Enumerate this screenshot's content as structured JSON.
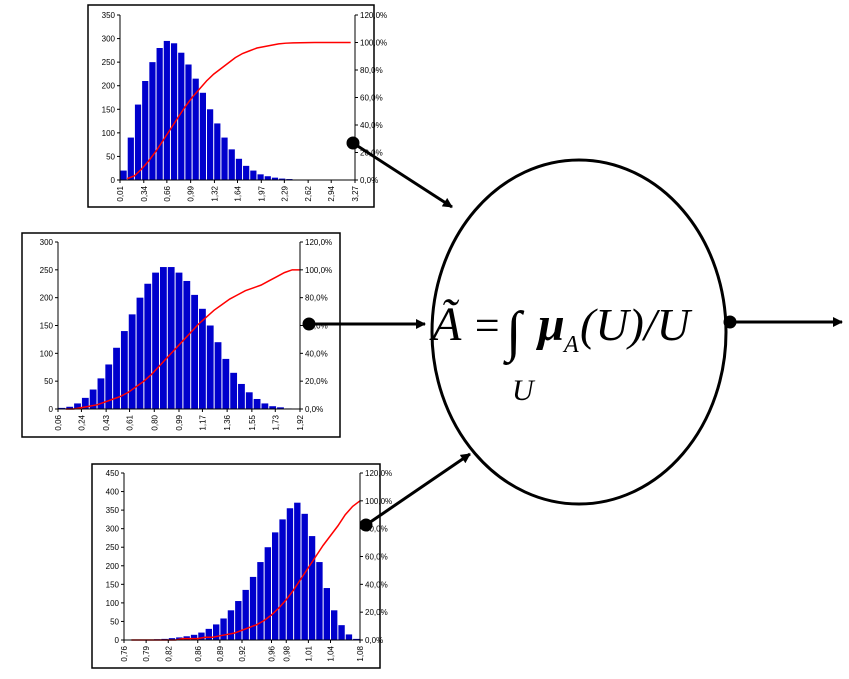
{
  "chart_data": [
    {
      "type": "histogram",
      "color": "#0000cc",
      "bins": [
        0.01,
        0.11,
        0.21,
        0.31,
        0.41,
        0.51,
        0.61,
        0.71,
        0.81,
        0.91,
        1.01,
        1.11,
        1.21,
        1.31,
        1.41,
        1.51,
        1.61,
        1.71,
        1.81,
        1.91,
        2.01,
        2.11,
        2.21,
        2.31,
        2.41,
        2.51,
        2.61,
        2.71,
        2.81,
        2.91,
        3.01,
        3.11,
        3.21
      ],
      "values": [
        20,
        90,
        160,
        210,
        250,
        280,
        295,
        290,
        270,
        245,
        215,
        185,
        150,
        120,
        90,
        65,
        45,
        30,
        20,
        12,
        8,
        5,
        3,
        2,
        1,
        1,
        0,
        0,
        0,
        0,
        0,
        0
      ],
      "series": [
        {
          "color": "#ff0000",
          "axis": "y2",
          "values": [
            1,
            3,
            8,
            14,
            21,
            29,
            37,
            45,
            53,
            60,
            66,
            72,
            77,
            81,
            85,
            89,
            92,
            94,
            96,
            97,
            98,
            99,
            99.5,
            99.7,
            99.8,
            99.9,
            100,
            100,
            100,
            100,
            100,
            100
          ]
        }
      ],
      "xlim": [
        0.01,
        3.27
      ],
      "xticks": [
        {
          "value": 0.01,
          "label": "0,01"
        },
        {
          "value": 0.34,
          "label": "0,34"
        },
        {
          "value": 0.66,
          "label": "0,66"
        },
        {
          "value": 0.99,
          "label": "0,99"
        },
        {
          "value": 1.32,
          "label": "1,32"
        },
        {
          "value": 1.64,
          "label": "1,64"
        },
        {
          "value": 1.97,
          "label": "1,97"
        },
        {
          "value": 2.29,
          "label": "2,29"
        },
        {
          "value": 2.62,
          "label": "2,62"
        },
        {
          "value": 2.94,
          "label": "2,94"
        },
        {
          "value": 3.27,
          "label": "3,27"
        }
      ],
      "ylim": [
        0,
        350
      ],
      "yticks": [
        0,
        50,
        100,
        150,
        200,
        250,
        300,
        350
      ],
      "y2lim": [
        0,
        120
      ],
      "y2ticks": [
        {
          "value": 0,
          "label": "0,0%"
        },
        {
          "value": 20,
          "label": "20,0%"
        },
        {
          "value": 40,
          "label": "40,0%"
        },
        {
          "value": 60,
          "label": "60,0%"
        },
        {
          "value": 80,
          "label": "80,0%"
        },
        {
          "value": 100,
          "label": "100,0%"
        },
        {
          "value": 120,
          "label": "120,0%"
        }
      ]
    },
    {
      "type": "histogram",
      "color": "#0000cc",
      "bins": [
        0.06,
        0.12,
        0.18,
        0.24,
        0.3,
        0.36,
        0.42,
        0.48,
        0.54,
        0.6,
        0.66,
        0.72,
        0.78,
        0.84,
        0.9,
        0.96,
        1.02,
        1.08,
        1.14,
        1.2,
        1.26,
        1.32,
        1.38,
        1.44,
        1.5,
        1.56,
        1.62,
        1.68,
        1.74,
        1.8,
        1.86,
        1.92
      ],
      "values": [
        2,
        4,
        10,
        20,
        35,
        55,
        80,
        110,
        140,
        170,
        200,
        225,
        245,
        255,
        255,
        245,
        230,
        205,
        180,
        150,
        120,
        90,
        65,
        45,
        30,
        18,
        10,
        5,
        3,
        1,
        0
      ],
      "series": [
        {
          "color": "#ff0000",
          "axis": "y2",
          "values": [
            0,
            0,
            1,
            2,
            3,
            5,
            7,
            9,
            12,
            16,
            20,
            25,
            31,
            37,
            43,
            49,
            55,
            61,
            66,
            71,
            75,
            79,
            82,
            85,
            87,
            89,
            92,
            95,
            98,
            100,
            100
          ]
        }
      ],
      "xlim": [
        0.06,
        1.92
      ],
      "xticks": [
        {
          "value": 0.06,
          "label": "0,06"
        },
        {
          "value": 0.24,
          "label": "0,24"
        },
        {
          "value": 0.43,
          "label": "0,43"
        },
        {
          "value": 0.61,
          "label": "0,61"
        },
        {
          "value": 0.8,
          "label": "0,80"
        },
        {
          "value": 0.99,
          "label": "0,99"
        },
        {
          "value": 1.17,
          "label": "1,17"
        },
        {
          "value": 1.36,
          "label": "1,36"
        },
        {
          "value": 1.55,
          "label": "1,55"
        },
        {
          "value": 1.73,
          "label": "1,73"
        },
        {
          "value": 1.92,
          "label": "1,92"
        }
      ],
      "ylim": [
        0,
        300
      ],
      "yticks": [
        0,
        50,
        100,
        150,
        200,
        250,
        300
      ],
      "y2lim": [
        0,
        120
      ],
      "y2ticks": [
        {
          "value": 0,
          "label": "0,0%"
        },
        {
          "value": 20,
          "label": "20,0%"
        },
        {
          "value": 40,
          "label": "40,0%"
        },
        {
          "value": 60,
          "label": "60,0%"
        },
        {
          "value": 80,
          "label": "80,0%"
        },
        {
          "value": 100,
          "label": "100,0%"
        },
        {
          "value": 120,
          "label": "120,0%"
        }
      ]
    },
    {
      "type": "histogram",
      "color": "#0000cc",
      "bins": [
        0.76,
        0.77,
        0.78,
        0.79,
        0.8,
        0.81,
        0.82,
        0.83,
        0.84,
        0.85,
        0.86,
        0.87,
        0.88,
        0.89,
        0.9,
        0.91,
        0.92,
        0.93,
        0.94,
        0.95,
        0.96,
        0.97,
        0.98,
        0.99,
        1.0,
        1.01,
        1.02,
        1.03,
        1.04,
        1.05,
        1.06,
        1.07,
        1.08
      ],
      "values": [
        0,
        0,
        0,
        1,
        2,
        3,
        5,
        7,
        10,
        14,
        20,
        30,
        42,
        58,
        80,
        105,
        135,
        170,
        210,
        250,
        290,
        325,
        355,
        370,
        340,
        280,
        210,
        140,
        80,
        40,
        15,
        3
      ],
      "series": [
        {
          "color": "#ff0000",
          "axis": "y2",
          "values": [
            0,
            0,
            0,
            0,
            0,
            0,
            0,
            1,
            1,
            1,
            2,
            2,
            3,
            4,
            5,
            7,
            9,
            11,
            14,
            18,
            23,
            29,
            36,
            44,
            52,
            60,
            68,
            75,
            82,
            90,
            96,
            100
          ]
        }
      ],
      "xlim": [
        0.76,
        1.08
      ],
      "xticks": [
        {
          "value": 0.76,
          "label": "0,76"
        },
        {
          "value": 0.79,
          "label": "0,79"
        },
        {
          "value": 0.82,
          "label": "0,82"
        },
        {
          "value": 0.86,
          "label": "0,86"
        },
        {
          "value": 0.89,
          "label": "0,89"
        },
        {
          "value": 0.92,
          "label": "0,92"
        },
        {
          "value": 0.96,
          "label": "0,96"
        },
        {
          "value": 0.98,
          "label": "0,98"
        },
        {
          "value": 1.01,
          "label": "1,01"
        },
        {
          "value": 1.04,
          "label": "1,04"
        },
        {
          "value": 1.08,
          "label": "1,08"
        }
      ],
      "ylim": [
        0,
        450
      ],
      "yticks": [
        0,
        50,
        100,
        150,
        200,
        250,
        300,
        350,
        400,
        450
      ],
      "y2lim": [
        0,
        120
      ],
      "y2ticks": [
        {
          "value": 0,
          "label": "0,0%"
        },
        {
          "value": 20,
          "label": "20,0%"
        },
        {
          "value": 40,
          "label": "40,0%"
        },
        {
          "value": 60,
          "label": "60,0%"
        },
        {
          "value": 80,
          "label": "80,0%"
        },
        {
          "value": 100,
          "label": "100,0%"
        },
        {
          "value": 120,
          "label": "120,0%"
        }
      ]
    }
  ],
  "formula": {
    "lhs": "Ã",
    "equals": "=",
    "integral": "∫",
    "mu": "μ",
    "sub": "A",
    "arg": "(U)/U",
    "lower": "U"
  }
}
